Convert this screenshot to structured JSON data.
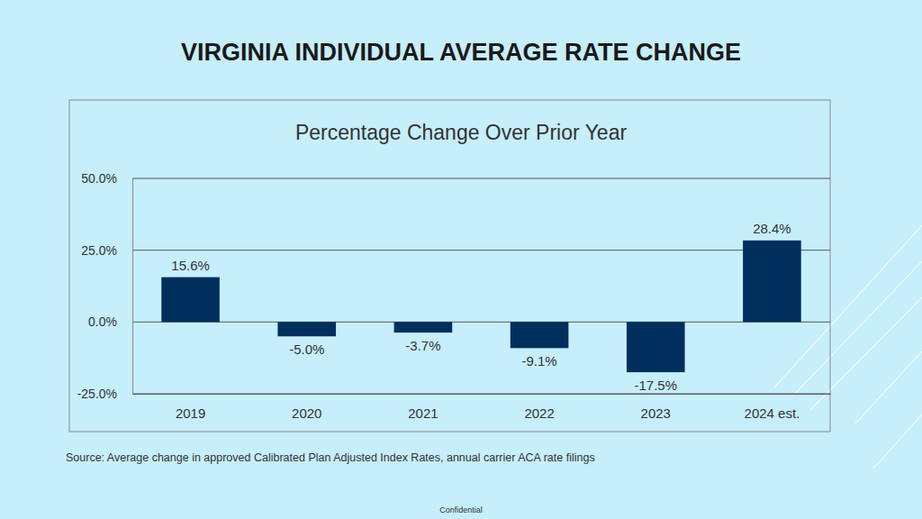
{
  "chart_data": {
    "type": "bar",
    "title": "VIRGINIA INDIVIDUAL AVERAGE RATE CHANGE",
    "subtitle": "Percentage Change Over Prior Year",
    "categories": [
      "2019",
      "2020",
      "2021",
      "2022",
      "2023",
      "2024 est."
    ],
    "values": [
      15.6,
      -5.0,
      -3.7,
      -9.1,
      -17.5,
      28.4
    ],
    "value_labels": [
      "15.6%",
      "-5.0%",
      "-3.7%",
      "-9.1%",
      "-17.5%",
      "28.4%"
    ],
    "data_labels": true,
    "color": "#002f5e",
    "ylim": [
      -25,
      50
    ],
    "yticks": [
      {
        "value": -25,
        "label": "-25.0%"
      },
      {
        "value": 0,
        "label": "0.0%"
      },
      {
        "value": 25,
        "label": "25.0%"
      },
      {
        "value": 50,
        "label": "50.0%"
      }
    ],
    "grid": true,
    "annotations": [
      "Source:  Average change in approved Calibrated Plan Adjusted Index Rates, annual carrier ACA rate filings",
      "Confidential"
    ]
  }
}
